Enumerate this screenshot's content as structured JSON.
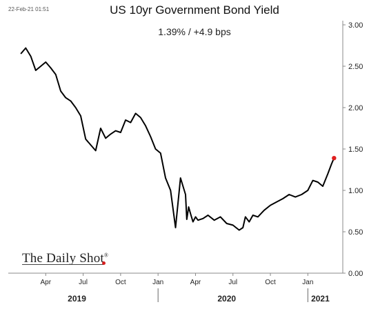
{
  "date_stamp": "22-Feb-21 01:51",
  "chart_data": {
    "type": "line",
    "title": "US 10yr Government Bond Yield",
    "subtitle": "1.39%  /  +4.9 bps",
    "ylim": [
      0,
      3
    ],
    "y_ticks": [
      "0.00",
      "0.50",
      "1.00",
      "1.50",
      "2.00",
      "2.50",
      "3.00"
    ],
    "y_axis_side": "right",
    "grid": false,
    "x_tick_labels": [
      "Apr",
      "Jul",
      "Oct",
      "Jan",
      "Apr",
      "Jul",
      "Oct",
      "Jan"
    ],
    "x_tick_months": [
      3,
      6,
      9,
      12,
      15,
      18,
      21,
      24
    ],
    "year_labels": [
      {
        "label": "2019",
        "center_month": 5.5
      },
      {
        "label": "2020",
        "center_month": 17.5
      },
      {
        "label": "2021",
        "center_month": 25
      }
    ],
    "year_separators_month": [
      12,
      24
    ],
    "series": [
      {
        "x": [
          1.0,
          1.4,
          1.8,
          2.2,
          2.6,
          3.0,
          3.4,
          3.8,
          4.2,
          4.6,
          5.0,
          5.4,
          5.8,
          6.2,
          6.6,
          7.0,
          7.4,
          7.8,
          8.2,
          8.6,
          9.0,
          9.4,
          9.8,
          10.2,
          10.6,
          11.0,
          11.4,
          11.8,
          12.2,
          12.6,
          13.0,
          13.4,
          13.8,
          14.2,
          14.3,
          14.45,
          14.6,
          14.8,
          15.0,
          15.2,
          15.6,
          16.0,
          16.5,
          17.0,
          17.5,
          18.0,
          18.5,
          18.8,
          19.0,
          19.3,
          19.6,
          20.0,
          20.5,
          21.0,
          21.5,
          22.0,
          22.5,
          23.0,
          23.5,
          24.0,
          24.4,
          24.8,
          25.2,
          25.6,
          25.9,
          26.1
        ],
        "y": [
          2.65,
          2.72,
          2.62,
          2.45,
          2.5,
          2.55,
          2.48,
          2.4,
          2.2,
          2.12,
          2.08,
          2.0,
          1.9,
          1.62,
          1.55,
          1.48,
          1.75,
          1.63,
          1.68,
          1.72,
          1.7,
          1.85,
          1.82,
          1.93,
          1.88,
          1.78,
          1.65,
          1.5,
          1.45,
          1.15,
          1.0,
          0.55,
          1.15,
          0.95,
          0.65,
          0.8,
          0.72,
          0.62,
          0.68,
          0.64,
          0.66,
          0.7,
          0.64,
          0.68,
          0.6,
          0.58,
          0.52,
          0.55,
          0.68,
          0.62,
          0.7,
          0.68,
          0.76,
          0.82,
          0.86,
          0.9,
          0.95,
          0.92,
          0.95,
          1.0,
          1.12,
          1.1,
          1.05,
          1.2,
          1.32,
          1.39
        ]
      }
    ],
    "last_point_marker_color": "#e02020",
    "line_color": "#000000"
  },
  "logo": {
    "text": "The Daily Shot",
    "mark": "®"
  }
}
